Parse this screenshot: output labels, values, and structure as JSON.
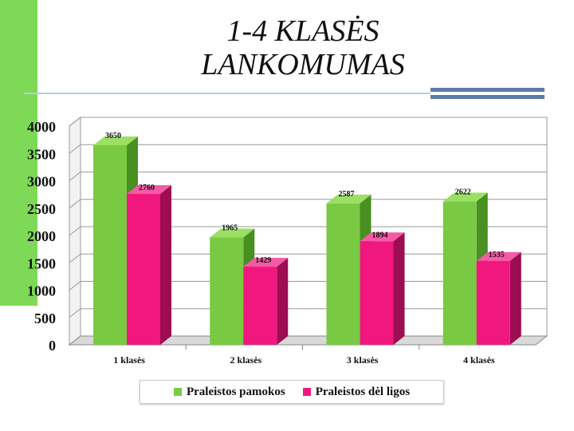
{
  "title_line1": "1-4 KLASĖS",
  "title_line2": "LANKOMUMAS",
  "colors": {
    "accent_green": "#7ed957",
    "series1_front": "#7ac943",
    "series1_side": "#4a8f22",
    "series1_top": "#9be064",
    "series2_front": "#f0187f",
    "series2_side": "#9c0d52",
    "series2_top": "#f55aa6",
    "deco_blue": "#5b7ba8"
  },
  "chart_data": {
    "type": "bar",
    "categories": [
      "1 klasės",
      "2 klasės",
      "3 klasės",
      "4 klasės"
    ],
    "series": [
      {
        "name": "Praleistos pamokos",
        "values": [
          3650,
          1965,
          2587,
          2622
        ]
      },
      {
        "name": "Praleistos dėl ligos",
        "values": [
          2760,
          1429,
          1894,
          1535
        ]
      }
    ],
    "yticks": [
      0,
      500,
      1000,
      1500,
      2000,
      2500,
      3000,
      3500,
      4000
    ],
    "ylim": [
      0,
      4000
    ],
    "grid": true,
    "legend_position": "bottom"
  }
}
